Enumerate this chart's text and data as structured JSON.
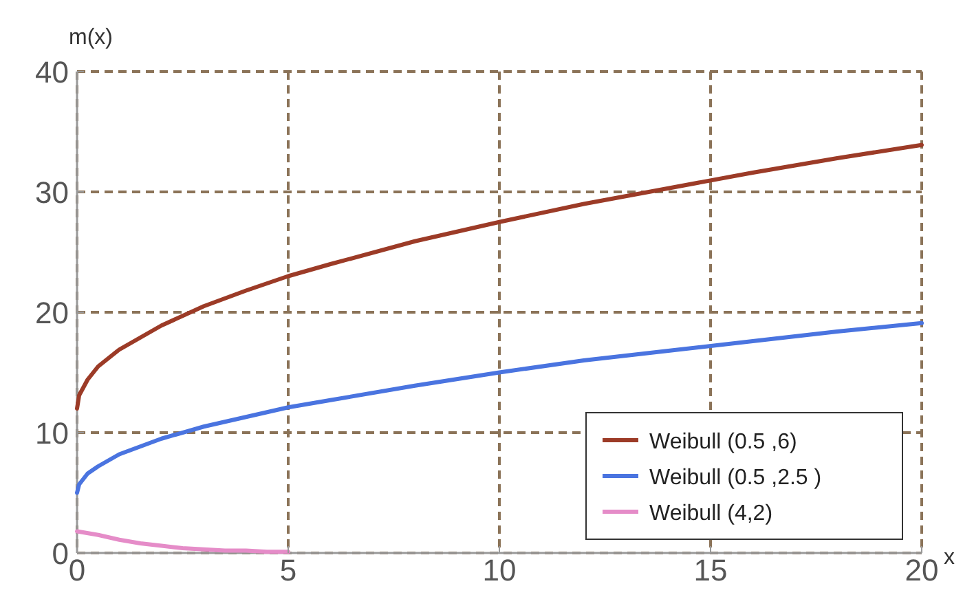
{
  "chart_data": {
    "type": "line",
    "xlabel": "x",
    "ylabel": "m(x)",
    "xlim": [
      0,
      20
    ],
    "ylim": [
      0,
      40
    ],
    "xticks": [
      0,
      5,
      10,
      15,
      20
    ],
    "yticks": [
      0,
      10,
      20,
      30,
      40
    ],
    "grid": true,
    "legend": "bottom right",
    "series": [
      {
        "name": "Weibull (0.5 ,6)",
        "color": "#9c3b27",
        "x": [
          0,
          0.05,
          0.25,
          0.5,
          1,
          2,
          3,
          4,
          5,
          6,
          8,
          10,
          12,
          14,
          16,
          18,
          20
        ],
        "values": [
          12,
          13.1,
          14.4,
          15.5,
          16.9,
          18.9,
          20.5,
          21.8,
          23,
          24,
          25.9,
          27.5,
          29,
          30.3,
          31.6,
          32.8,
          33.9
        ]
      },
      {
        "name": "Weibull (0.5 ,2.5 )",
        "color": "#4a74e0",
        "x": [
          0,
          0.05,
          0.25,
          0.5,
          1,
          2,
          3,
          4,
          5,
          6,
          8,
          10,
          12,
          14,
          16,
          18,
          20
        ],
        "values": [
          5,
          5.7,
          6.6,
          7.2,
          8.2,
          9.5,
          10.5,
          11.3,
          12.1,
          12.7,
          13.9,
          15,
          16,
          16.8,
          17.6,
          18.4,
          19.1
        ]
      },
      {
        "name": "Weibull (4,2)",
        "color": "#e58cc8",
        "x": [
          0,
          0.5,
          1,
          1.5,
          2,
          2.5,
          3,
          3.5,
          4,
          4.5,
          5
        ],
        "values": [
          1.8,
          1.5,
          1.1,
          0.8,
          0.6,
          0.4,
          0.3,
          0.2,
          0.2,
          0.1,
          0.1
        ]
      }
    ]
  }
}
